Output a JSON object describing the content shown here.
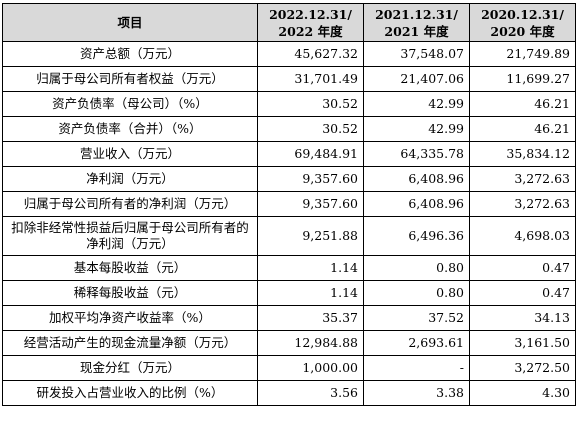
{
  "header": {
    "item": "项目",
    "periods": [
      {
        "date": "2022.12.31/",
        "year": "2022 年度"
      },
      {
        "date": "2021.12.31/",
        "year": "2021 年度"
      },
      {
        "date": "2020.12.31/",
        "year": "2020 年度"
      }
    ]
  },
  "rows": [
    {
      "label": "资产总额（万元）",
      "values": [
        "45,627.32",
        "37,548.07",
        "21,749.89"
      ]
    },
    {
      "label": "归属于母公司所有者权益（万元）",
      "values": [
        "31,701.49",
        "21,407.06",
        "11,699.27"
      ]
    },
    {
      "label": "资产负债率（母公司）（%）",
      "values": [
        "30.52",
        "42.99",
        "46.21"
      ]
    },
    {
      "label": "资产负债率（合并）（%）",
      "values": [
        "30.52",
        "42.99",
        "46.21"
      ]
    },
    {
      "label": "营业收入（万元）",
      "values": [
        "69,484.91",
        "64,335.78",
        "35,834.12"
      ]
    },
    {
      "label": "净利润（万元）",
      "values": [
        "9,357.60",
        "6,408.96",
        "3,272.63"
      ]
    },
    {
      "label": "归属于母公司所有者的净利润（万元）",
      "values": [
        "9,357.60",
        "6,408.96",
        "3,272.63"
      ]
    },
    {
      "label": "扣除非经常性损益后归属于母公司所有者的净利润（万元）",
      "values": [
        "9,251.88",
        "6,496.36",
        "4,698.03"
      ]
    },
    {
      "label": "基本每股收益（元）",
      "values": [
        "1.14",
        "0.80",
        "0.47"
      ]
    },
    {
      "label": "稀释每股收益（元）",
      "values": [
        "1.14",
        "0.80",
        "0.47"
      ]
    },
    {
      "label": "加权平均净资产收益率（%）",
      "values": [
        "35.37",
        "37.52",
        "34.13"
      ]
    },
    {
      "label": "经营活动产生的现金流量净额（万元）",
      "values": [
        "12,984.88",
        "2,693.61",
        "3,161.50"
      ]
    },
    {
      "label": "现金分红（万元）",
      "values": [
        "1,000.00",
        "-",
        "3,272.50"
      ]
    },
    {
      "label": "研发投入占营业收入的比例（%）",
      "values": [
        "3.56",
        "3.38",
        "4.30"
      ]
    }
  ]
}
